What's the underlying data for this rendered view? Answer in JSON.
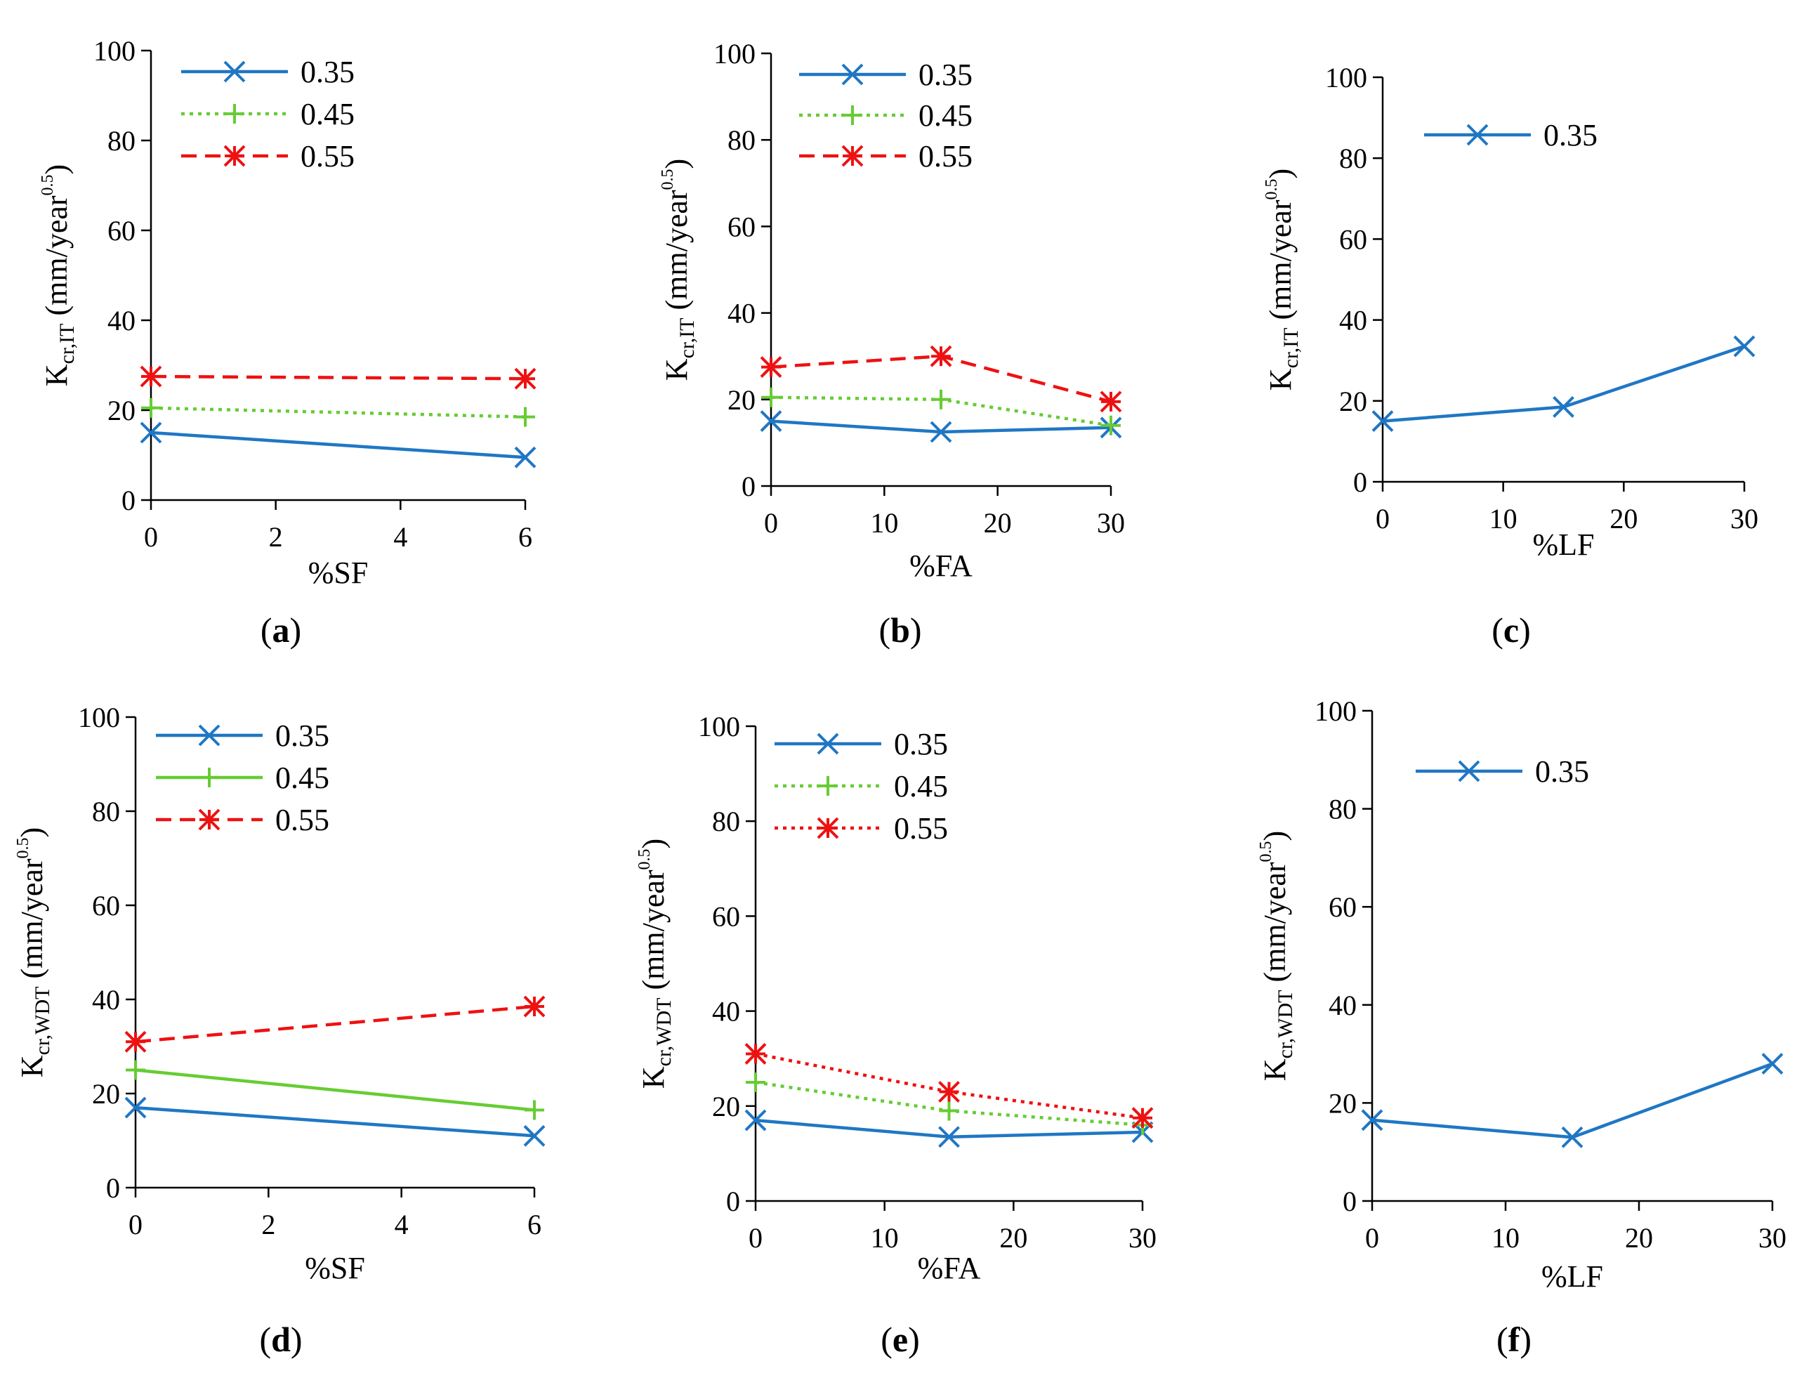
{
  "figure": {
    "panels": [
      {
        "caption_letter": "a",
        "chart_data": {
          "type": "line",
          "xlabel": "%SF",
          "ylabel": {
            "main": "K",
            "sub": "cr,IT",
            "units": " (mm/year",
            "sup": "0.5",
            "close": ")"
          },
          "xlim": [
            0,
            6
          ],
          "xticks": [
            0,
            2,
            4,
            6
          ],
          "ylim": [
            0,
            100
          ],
          "yticks": [
            0,
            20,
            40,
            60,
            80,
            100
          ],
          "legend": "top-left",
          "series": [
            {
              "name": "0.35",
              "x": [
                0,
                6
              ],
              "values": [
                15,
                9.5
              ],
              "color": "#1f77c4",
              "dash": "solid",
              "marker": "x"
            },
            {
              "name": "0.45",
              "x": [
                0,
                6
              ],
              "values": [
                20.5,
                18.5
              ],
              "color": "#66cc33",
              "dash": "dotted",
              "marker": "plus"
            },
            {
              "name": "0.55",
              "x": [
                0,
                6
              ],
              "values": [
                27.5,
                27
              ],
              "color": "#ee1111",
              "dash": "dashed",
              "marker": "star"
            }
          ]
        }
      },
      {
        "caption_letter": "b",
        "chart_data": {
          "type": "line",
          "xlabel": "%FA",
          "ylabel": {
            "main": "K",
            "sub": "cr,IT",
            "units": " (mm/year",
            "sup": "0.5",
            "close": ")"
          },
          "xlim": [
            0,
            30
          ],
          "xticks": [
            0,
            10,
            20,
            30
          ],
          "ylim": [
            0,
            100
          ],
          "yticks": [
            0,
            20,
            40,
            60,
            80,
            100
          ],
          "legend": "top-left",
          "series": [
            {
              "name": "0.35",
              "x": [
                0,
                15,
                30
              ],
              "values": [
                15,
                12.5,
                13.5
              ],
              "color": "#1f77c4",
              "dash": "solid",
              "marker": "x"
            },
            {
              "name": "0.45",
              "x": [
                0,
                15,
                30
              ],
              "values": [
                20.5,
                20,
                14
              ],
              "color": "#66cc33",
              "dash": "dotted",
              "marker": "plus"
            },
            {
              "name": "0.55",
              "x": [
                0,
                15,
                30
              ],
              "values": [
                27.5,
                30,
                19.5
              ],
              "color": "#ee1111",
              "dash": "dashed",
              "marker": "star"
            }
          ]
        }
      },
      {
        "caption_letter": "c",
        "chart_data": {
          "type": "line",
          "xlabel": "%LF",
          "ylabel": {
            "main": "K",
            "sub": "cr,IT",
            "units": " (mm/year",
            "sup": "0.5",
            "close": ")"
          },
          "xlim": [
            0,
            30
          ],
          "xticks": [
            0,
            10,
            20,
            30
          ],
          "ylim": [
            0,
            100
          ],
          "yticks": [
            0,
            20,
            40,
            60,
            80,
            100
          ],
          "legend": "top-left",
          "series": [
            {
              "name": "0.35",
              "x": [
                0,
                15,
                30
              ],
              "values": [
                15,
                18.5,
                33.5
              ],
              "color": "#1f77c4",
              "dash": "solid",
              "marker": "x"
            }
          ]
        }
      },
      {
        "caption_letter": "d",
        "chart_data": {
          "type": "line",
          "xlabel": "%SF",
          "ylabel": {
            "main": "K",
            "sub": "cr,WDT",
            "units": " (mm/year",
            "sup": "0.5",
            "close": ")"
          },
          "xlim": [
            0,
            6
          ],
          "xticks": [
            0,
            2,
            4,
            6
          ],
          "ylim": [
            0,
            100
          ],
          "yticks": [
            0,
            20,
            40,
            60,
            80,
            100
          ],
          "legend": "top-left",
          "series": [
            {
              "name": "0.35",
              "x": [
                0,
                6
              ],
              "values": [
                17,
                11
              ],
              "color": "#1f77c4",
              "dash": "solid",
              "marker": "x"
            },
            {
              "name": "0.45",
              "x": [
                0,
                6
              ],
              "values": [
                25,
                16.5
              ],
              "color": "#66cc33",
              "dash": "solid",
              "marker": "plus"
            },
            {
              "name": "0.55",
              "x": [
                0,
                6
              ],
              "values": [
                31,
                38.5
              ],
              "color": "#ee1111",
              "dash": "dashed",
              "marker": "star"
            }
          ]
        }
      },
      {
        "caption_letter": "e",
        "chart_data": {
          "type": "line",
          "xlabel": "%FA",
          "ylabel": {
            "main": "K",
            "sub": "cr,WDT",
            "units": " (mm/year",
            "sup": "0.5",
            "close": ")"
          },
          "xlim": [
            0,
            30
          ],
          "xticks": [
            0,
            10,
            20,
            30
          ],
          "ylim": [
            0,
            100
          ],
          "yticks": [
            0,
            20,
            40,
            60,
            80,
            100
          ],
          "legend": "top-left",
          "series": [
            {
              "name": "0.35",
              "x": [
                0,
                15,
                30
              ],
              "values": [
                17,
                13.5,
                14.5
              ],
              "color": "#1f77c4",
              "dash": "solid",
              "marker": "x"
            },
            {
              "name": "0.45",
              "x": [
                0,
                15,
                30
              ],
              "values": [
                25,
                19,
                16
              ],
              "color": "#66cc33",
              "dash": "dotted",
              "marker": "plus"
            },
            {
              "name": "0.55",
              "x": [
                0,
                15,
                30
              ],
              "values": [
                31,
                23,
                17.5
              ],
              "color": "#ee1111",
              "dash": "dotted",
              "marker": "star"
            }
          ]
        }
      },
      {
        "caption_letter": "f",
        "chart_data": {
          "type": "line",
          "xlabel": "%LF",
          "ylabel": {
            "main": "K",
            "sub": "cr,WDT",
            "units": " (mm/year",
            "sup": "0.5",
            "close": ")"
          },
          "xlim": [
            0,
            30
          ],
          "xticks": [
            0,
            10,
            20,
            30
          ],
          "ylim": [
            0,
            100
          ],
          "yticks": [
            0,
            20,
            40,
            60,
            80,
            100
          ],
          "legend": "top-left",
          "series": [
            {
              "name": "0.35",
              "x": [
                0,
                15,
                30
              ],
              "values": [
                16.5,
                13,
                28
              ],
              "color": "#1f77c4",
              "dash": "solid",
              "marker": "x"
            }
          ]
        }
      }
    ]
  }
}
